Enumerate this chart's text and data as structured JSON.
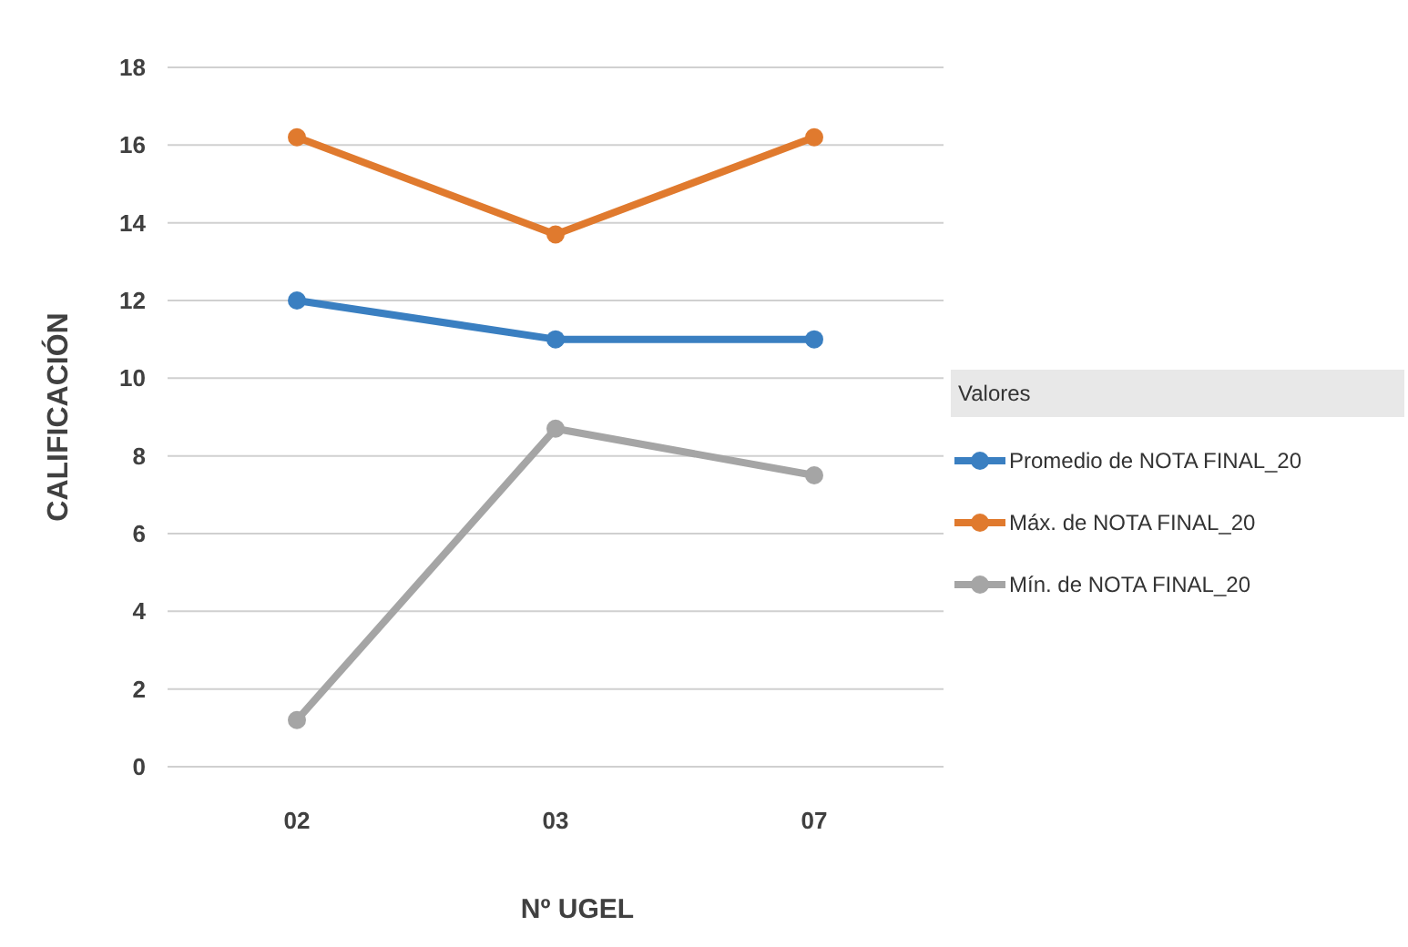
{
  "chart_data": {
    "type": "line",
    "xlabel": "Nº UGEL",
    "ylabel": "CALIFICACIÓN",
    "legend_title": "Valores",
    "categories": [
      "02",
      "03",
      "07"
    ],
    "series": [
      {
        "name": "Promedio de NOTA FINAL_20",
        "color": "#3a7fc1",
        "values": [
          12.0,
          11.0,
          11.0
        ]
      },
      {
        "name": "Máx. de NOTA FINAL_20",
        "color": "#e07a2e",
        "values": [
          16.2,
          13.7,
          16.2
        ]
      },
      {
        "name": "Mín. de NOTA FINAL_20",
        "color": "#a5a5a5",
        "values": [
          1.2,
          8.7,
          7.5
        ]
      }
    ],
    "ylim": [
      0,
      18
    ],
    "yticks": [
      0,
      2,
      4,
      6,
      8,
      10,
      12,
      14,
      16,
      18
    ],
    "grid": "y",
    "legend": "right",
    "marker": "circle",
    "line_style": "solid"
  }
}
